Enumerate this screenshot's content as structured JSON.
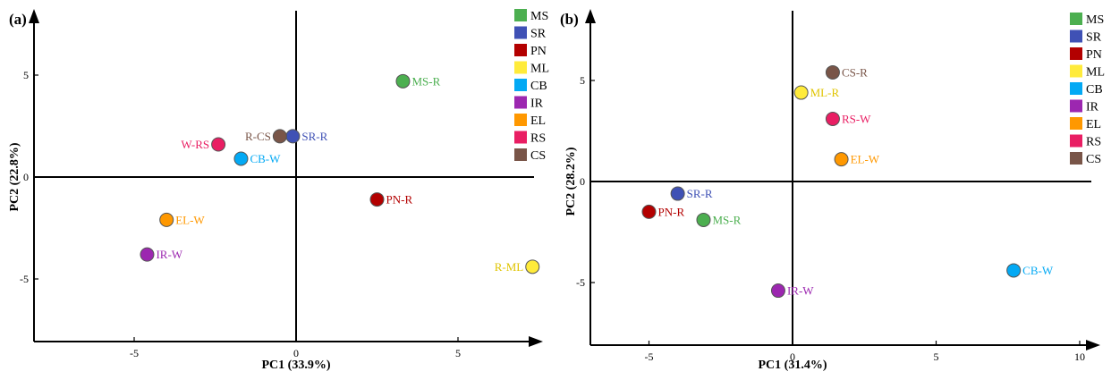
{
  "legend_items": [
    {
      "label": "MS",
      "color": "#4caf50"
    },
    {
      "label": "SR",
      "color": "#3f51b5"
    },
    {
      "label": "PN",
      "color": "#b30000"
    },
    {
      "label": "ML",
      "color": "#ffeb3b"
    },
    {
      "label": "CB",
      "color": "#03a9f4"
    },
    {
      "label": "IR",
      "color": "#9c27b0"
    },
    {
      "label": "EL",
      "color": "#ff9800"
    },
    {
      "label": "RS",
      "color": "#e91e63"
    },
    {
      "label": "CS",
      "color": "#795548"
    }
  ],
  "chart_data": [
    {
      "type": "scatter",
      "panel_label": "(a)",
      "xlabel": "PC1 (33.9%)",
      "ylabel": "PC2 (22.8%)",
      "xlim": [
        -8,
        8
      ],
      "ylim": [
        -8,
        8
      ],
      "xticks": [
        -5,
        0,
        5
      ],
      "yticks": [
        -5,
        0,
        5
      ],
      "xtick_labels": [
        "-5",
        "0",
        "5"
      ],
      "ytick_labels": [
        "-5",
        "0",
        "5"
      ],
      "grid": false,
      "legend": "top-right",
      "points": [
        {
          "label": "MS-R",
          "group": "MS",
          "x": 3.3,
          "y": 4.7,
          "label_side": "right",
          "color": "#4caf50",
          "label_color": "#4caf50"
        },
        {
          "label": "SR-R",
          "group": "SR",
          "x": -0.1,
          "y": 2.0,
          "label_side": "right",
          "color": "#3f51b5",
          "label_color": "#3f51b5"
        },
        {
          "label": "R-CS",
          "group": "CS",
          "x": -0.5,
          "y": 2.0,
          "label_side": "left",
          "color": "#795548",
          "label_color": "#795548"
        },
        {
          "label": "W-RS",
          "group": "RS",
          "x": -2.4,
          "y": 1.6,
          "label_side": "left",
          "color": "#e91e63",
          "label_color": "#e91e63"
        },
        {
          "label": "CB-W",
          "group": "CB",
          "x": -1.7,
          "y": 0.9,
          "label_side": "right",
          "color": "#03a9f4",
          "label_color": "#03a9f4"
        },
        {
          "label": "PN-R",
          "group": "PN",
          "x": 2.5,
          "y": -1.1,
          "label_side": "right",
          "color": "#b30000",
          "label_color": "#b30000"
        },
        {
          "label": "EL-W",
          "group": "EL",
          "x": -4.0,
          "y": -2.1,
          "label_side": "right",
          "color": "#ff9800",
          "label_color": "#ff9800"
        },
        {
          "label": "IR-W",
          "group": "IR",
          "x": -4.6,
          "y": -3.8,
          "label_side": "right",
          "color": "#9c27b0",
          "label_color": "#9c27b0"
        },
        {
          "label": "R-ML",
          "group": "ML",
          "x": 7.3,
          "y": -4.4,
          "label_side": "left",
          "color": "#ffeb3b",
          "label_color": "#e0c400"
        }
      ]
    },
    {
      "type": "scatter",
      "panel_label": "(b)",
      "xlabel": "PC1 (31.4%)",
      "ylabel": "PC2 (28.2%)",
      "xlim": [
        -8,
        11
      ],
      "ylim": [
        -8,
        8
      ],
      "xticks": [
        -5,
        0,
        5,
        10
      ],
      "yticks": [
        -5,
        0,
        5
      ],
      "xtick_labels": [
        "-5",
        "0",
        "5",
        "10"
      ],
      "ytick_labels": [
        "-5",
        "0",
        "5"
      ],
      "grid": false,
      "legend": "top-right",
      "points": [
        {
          "label": "CS-R",
          "group": "CS",
          "x": 1.4,
          "y": 5.4,
          "label_side": "right",
          "color": "#795548",
          "label_color": "#795548"
        },
        {
          "label": "ML-R",
          "group": "ML",
          "x": 0.3,
          "y": 4.4,
          "label_side": "right",
          "color": "#ffeb3b",
          "label_color": "#e0c400"
        },
        {
          "label": "RS-W",
          "group": "RS",
          "x": 1.4,
          "y": 3.1,
          "label_side": "right",
          "color": "#e91e63",
          "label_color": "#e91e63"
        },
        {
          "label": "EL-W",
          "group": "EL",
          "x": 1.7,
          "y": 1.1,
          "label_side": "right",
          "color": "#ff9800",
          "label_color": "#ff9800"
        },
        {
          "label": "SR-R",
          "group": "SR",
          "x": -4.0,
          "y": -0.6,
          "label_side": "right",
          "color": "#3f51b5",
          "label_color": "#3f51b5"
        },
        {
          "label": "PN-R",
          "group": "PN",
          "x": -5.0,
          "y": -1.5,
          "label_side": "right",
          "color": "#b30000",
          "label_color": "#b30000"
        },
        {
          "label": "MS-R",
          "group": "MS",
          "x": -3.1,
          "y": -1.9,
          "label_side": "right",
          "color": "#4caf50",
          "label_color": "#4caf50"
        },
        {
          "label": "IR-W",
          "group": "IR",
          "x": -0.5,
          "y": -5.4,
          "label_side": "right",
          "color": "#9c27b0",
          "label_color": "#9c27b0"
        },
        {
          "label": "CB-W",
          "group": "CB",
          "x": 7.7,
          "y": -4.4,
          "label_side": "right",
          "color": "#03a9f4",
          "label_color": "#03a9f4"
        }
      ]
    }
  ]
}
